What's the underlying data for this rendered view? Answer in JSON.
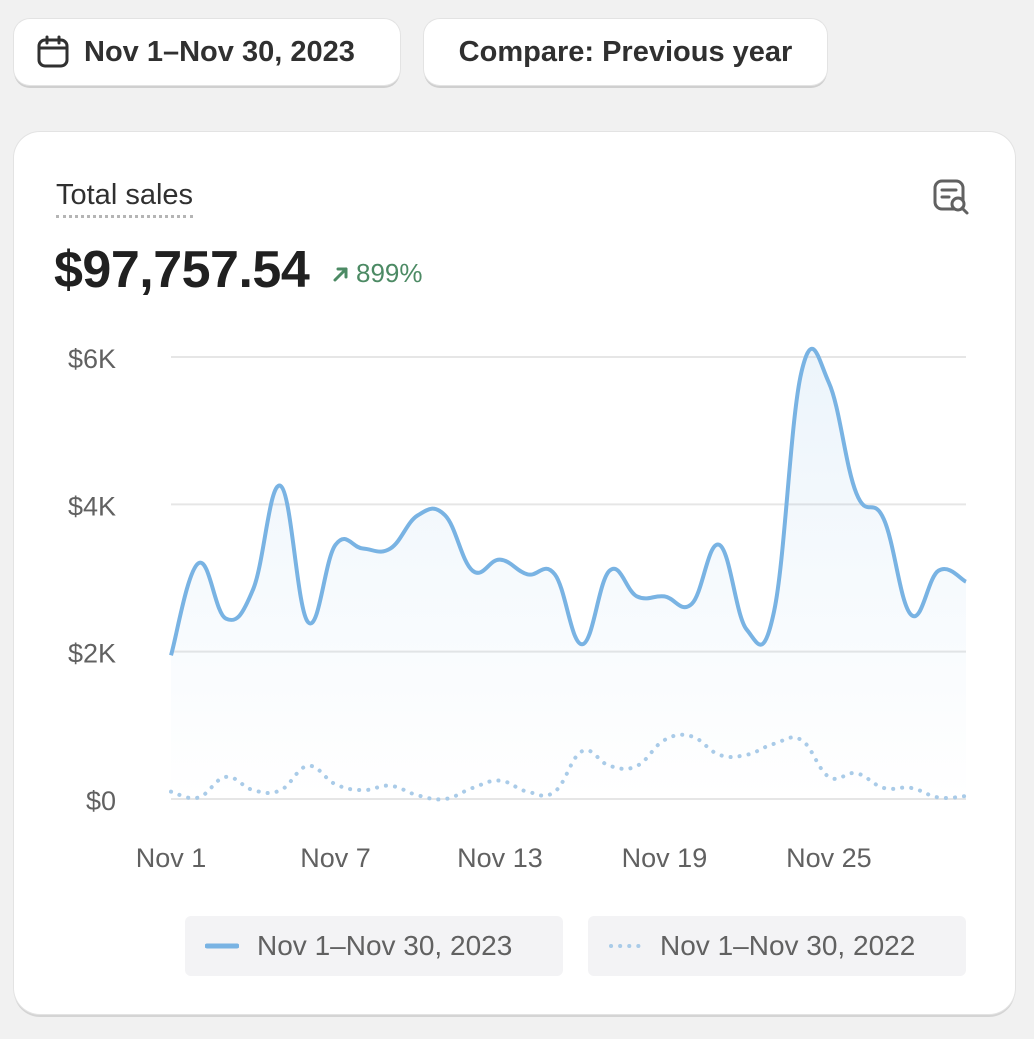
{
  "date_range_button": {
    "label": "Nov 1–Nov 30, 2023",
    "icon": "calendar-icon"
  },
  "compare_button": {
    "label": "Compare: Previous year"
  },
  "card": {
    "title": "Total sales",
    "value": "$97,757.54",
    "change": "899%",
    "change_direction": "up",
    "explore_icon": "report-search-icon"
  },
  "colors": {
    "current": "#79b3e3",
    "previous": "#a9cbe8",
    "change_positive": "#4c8a64"
  },
  "chart_data": {
    "type": "line",
    "x": [
      "Nov 1",
      "Nov 2",
      "Nov 3",
      "Nov 4",
      "Nov 5",
      "Nov 6",
      "Nov 7",
      "Nov 8",
      "Nov 9",
      "Nov 10",
      "Nov 11",
      "Nov 12",
      "Nov 13",
      "Nov 14",
      "Nov 15",
      "Nov 16",
      "Nov 17",
      "Nov 18",
      "Nov 19",
      "Nov 20",
      "Nov 21",
      "Nov 22",
      "Nov 23",
      "Nov 24",
      "Nov 25",
      "Nov 26",
      "Nov 27",
      "Nov 28",
      "Nov 29",
      "Nov 30"
    ],
    "x_tick_labels": [
      "Nov 1",
      "Nov 7",
      "Nov 13",
      "Nov 19",
      "Nov 25"
    ],
    "y_tick_labels": [
      "$0",
      "$2K",
      "$4K",
      "$6K"
    ],
    "y_ticks": [
      0,
      2000,
      4000,
      6000
    ],
    "ylim": [
      0,
      6000
    ],
    "grid": true,
    "legend_position": "bottom",
    "series": [
      {
        "name": "Nov 1–Nov 30, 2023",
        "style": "solid",
        "values": [
          1950,
          3200,
          2450,
          2850,
          4250,
          2400,
          3450,
          3400,
          3400,
          3850,
          3850,
          3100,
          3250,
          3050,
          3050,
          2100,
          3100,
          2750,
          2750,
          2650,
          3450,
          2300,
          2550,
          5800,
          5650,
          4150,
          3800,
          2500,
          3100,
          2950
        ]
      },
      {
        "name": "Nov 1–Nov 30, 2022",
        "style": "dotted",
        "values": [
          100,
          20,
          300,
          120,
          120,
          450,
          200,
          120,
          180,
          50,
          0,
          150,
          250,
          100,
          100,
          650,
          450,
          450,
          800,
          850,
          600,
          600,
          750,
          800,
          300,
          350,
          150,
          150,
          20,
          40
        ]
      }
    ]
  }
}
